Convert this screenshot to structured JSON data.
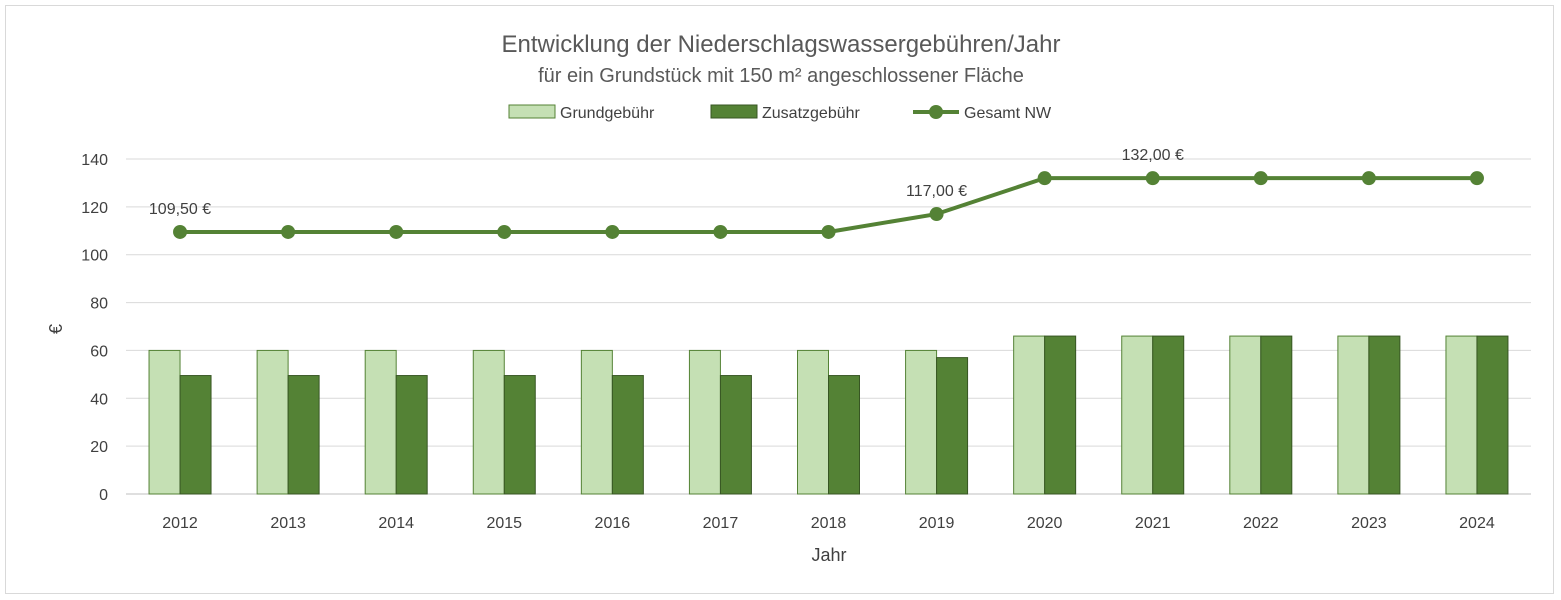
{
  "chart_data": {
    "type": "bar",
    "title": "Entwicklung der Niederschlagswassergebühren/Jahr",
    "subtitle": "für ein Grundstück mit 150 m² angeschlossener Fläche",
    "xlabel": "Jahr",
    "ylabel": "€",
    "ylim": [
      0,
      140
    ],
    "yticks": [
      0,
      20,
      40,
      60,
      80,
      100,
      120,
      140
    ],
    "grid": true,
    "legend_position": "top",
    "categories": [
      "2012",
      "2013",
      "2014",
      "2015",
      "2016",
      "2017",
      "2018",
      "2019",
      "2020",
      "2021",
      "2022",
      "2023",
      "2024"
    ],
    "series": [
      {
        "name": "Grundgebühr",
        "type": "bar",
        "color": "#c5e0b4",
        "stroke": "#548235",
        "values": [
          60,
          60,
          60,
          60,
          60,
          60,
          60,
          60,
          66,
          66,
          66,
          66,
          66
        ]
      },
      {
        "name": "Zusatzgebühr",
        "type": "bar",
        "color": "#548235",
        "stroke": "#375623",
        "values": [
          49.5,
          49.5,
          49.5,
          49.5,
          49.5,
          49.5,
          49.5,
          57,
          66,
          66,
          66,
          66,
          66
        ]
      },
      {
        "name": "Gesamt NW",
        "type": "line",
        "color": "#548235",
        "values": [
          109.5,
          109.5,
          109.5,
          109.5,
          109.5,
          109.5,
          109.5,
          117,
          132,
          132,
          132,
          132,
          132
        ]
      }
    ],
    "annotations": [
      {
        "series": "Gesamt NW",
        "category": "2012",
        "text": "109,50 €"
      },
      {
        "series": "Gesamt NW",
        "category": "2019",
        "text": "117,00 €"
      },
      {
        "series": "Gesamt NW",
        "category": "2021",
        "text": "132,00 €"
      }
    ],
    "colors": {
      "gridline": "#d9d9d9",
      "axis": "#bfbfbf",
      "title": "#595959",
      "text": "#404040"
    }
  }
}
